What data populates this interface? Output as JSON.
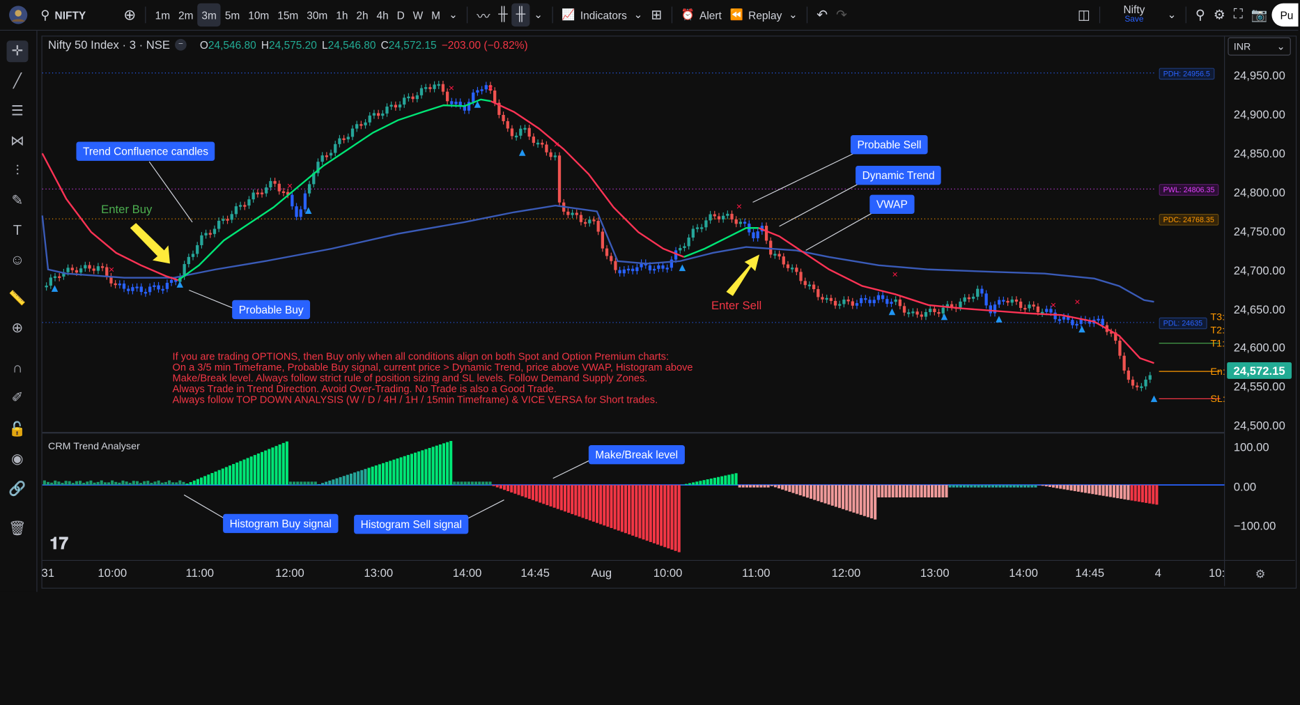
{
  "toolbar": {
    "symbol": "NIFTY",
    "intervals": [
      "1m",
      "2m",
      "3m",
      "5m",
      "10m",
      "15m",
      "30m",
      "1h",
      "2h",
      "4h",
      "D",
      "W",
      "M"
    ],
    "active_interval": "3m",
    "indicators_label": "Indicators",
    "alert_label": "Alert",
    "replay_label": "Replay",
    "layout_name": "Nifty",
    "layout_save": "Save",
    "publish_label": "Pu"
  },
  "legend": {
    "title": "Nifty 50 Index · 3 · NSE",
    "o_label": "O",
    "o_value": "24,546.80",
    "h_label": "H",
    "h_value": "24,575.20",
    "l_label": "L",
    "l_value": "24,546.80",
    "c_label": "C",
    "c_value": "24,572.15",
    "change": "−203.00 (−0.82%)"
  },
  "currency": "INR",
  "price_axis": {
    "labels": [
      "24,950.00",
      "24,900.00",
      "24,850.00",
      "24,800.00",
      "24,750.00",
      "24,700.00",
      "24,650.00",
      "24,600.00",
      "24,550.00",
      "24,500.00"
    ],
    "current_price": "24,572.15",
    "current_color": "#22ab94"
  },
  "levels": {
    "pdh": "PDH: 24956.5",
    "pwl": "PWL: 24806.35",
    "pdc": "PDC: 24768.35",
    "pdl": "PDL: 24635",
    "t3": "T3:",
    "t2": "T2:",
    "t1": "T1:",
    "en": "En:",
    "sl": "SL:"
  },
  "time_axis": {
    "labels": [
      "31",
      "10:00",
      "11:00",
      "12:00",
      "13:00",
      "14:00",
      "14:45",
      "Aug",
      "10:00",
      "11:00",
      "12:00",
      "13:00",
      "14:00",
      "14:45",
      "4",
      "10:"
    ]
  },
  "callouts": {
    "trend_confluence": "Trend Confluence candles",
    "enter_buy": "Enter Buy",
    "probable_buy": "Probable Buy",
    "probable_sell": "Probable Sell",
    "dynamic_trend": "Dynamic Trend",
    "vwap": "VWAP",
    "enter_sell": "Enter Sell",
    "make_break": "Make/Break level",
    "hist_buy": "Histogram Buy signal",
    "hist_sell": "Histogram Sell signal"
  },
  "note": "If you are trading OPTIONS, then Buy only when all conditions align on both Spot and Option Premium charts:\nOn a 3/5 min Timeframe, Probable Buy signal, current price > Dynamic Trend, price above VWAP, Histogram above\nMake/Break level. Always follow strict rule of position sizing and SL levels. Follow Demand Supply Zones.\nAlways Trade in Trend Direction. Avoid Over-Trading. No Trade is also a Good Trade.\nAlways follow TOP DOWN ANALYSIS (W / D / 4H / 1H / 15min Timeframe) & VICE VERSA for Short trades.",
  "oscillator": {
    "title": "CRM Trend Analyser",
    "labels": [
      "100.00",
      "0.00",
      "−100.00"
    ]
  },
  "colors": {
    "bull": "#26a69a",
    "bear": "#ef5350",
    "trend_up": "#00e676",
    "trend_down": "#ff1744",
    "vwap": "#2962ff",
    "blue_candle": "#2962ff"
  }
}
